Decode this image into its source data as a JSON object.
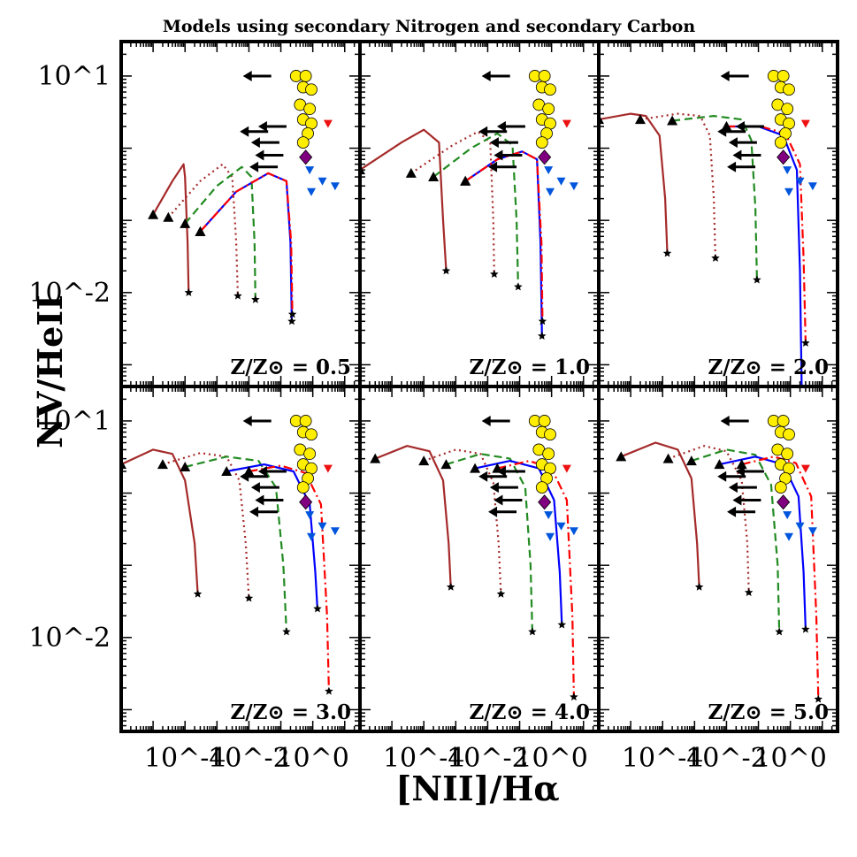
{
  "title": "Models using secondary Nitrogen and secondary Carbon",
  "chart_data": {
    "type": "line",
    "title": "Models using secondary Nitrogen and secondary Carbon",
    "xlabel": "[NII]/Hα",
    "ylabel": "NV/HeII",
    "xscale": "log",
    "yscale": "log",
    "xlim": [
      1e-06,
      30
    ],
    "ylim": [
      0.0005,
      30
    ],
    "x_ticks": [
      "10^-4",
      "10^-2",
      "10^0"
    ],
    "y_ticks": [
      "10^1",
      "10^-2"
    ],
    "grid": false,
    "layout": "2x3 panels, shared axes",
    "series_styles": [
      {
        "linestyle": "solid",
        "color": "#a52a2a"
      },
      {
        "linestyle": "dotted",
        "color": "#a52a2a"
      },
      {
        "linestyle": "dashed",
        "color": "#228b22"
      },
      {
        "linestyle": "solid",
        "color": "#0000ff"
      },
      {
        "linestyle": "dashdot",
        "color": "#ff0000"
      }
    ],
    "colors": {
      "track1": "#a52a2a",
      "track2": "#a52a2a",
      "track3": "#228b22",
      "track4": "#0000ff",
      "track5": "#ff0000",
      "obs_circle": "#ffee00",
      "obs_diamond": "#800080",
      "obs_blue": "#0055dd",
      "obs_red": "#ee1111"
    },
    "start_marker": "black triangle",
    "end_marker": "black star",
    "observations": {
      "yellow_circles": [
        [
          0.3,
          10
        ],
        [
          0.6,
          10
        ],
        [
          0.5,
          7
        ],
        [
          0.9,
          6.5
        ],
        [
          0.4,
          4
        ],
        [
          0.8,
          3.5
        ],
        [
          0.5,
          2.5
        ],
        [
          0.9,
          2.2
        ],
        [
          0.7,
          1.6
        ],
        [
          0.5,
          1.2
        ]
      ],
      "upper_limit_arrows": [
        [
          0.05,
          10
        ],
        [
          0.15,
          2
        ],
        [
          0.04,
          1.7
        ],
        [
          0.09,
          1.2
        ],
        [
          0.12,
          0.8
        ],
        [
          0.08,
          0.55
        ]
      ],
      "purple_diamond": [
        [
          0.6,
          0.75
        ]
      ],
      "red_down_triangles": [
        [
          3,
          2.2
        ]
      ],
      "blue_down_triangles": [
        [
          0.8,
          0.5
        ],
        [
          2,
          0.35
        ],
        [
          5,
          0.3
        ],
        [
          0.9,
          0.25
        ]
      ]
    },
    "panels": [
      {
        "label": "Z/Z⊙ = 0.5",
        "series": [
          {
            "x": [
              1e-05,
              4e-05,
              9e-05,
              0.0001,
              0.00012,
              0.00013
            ],
            "y": [
              0.12,
              0.35,
              0.6,
              0.4,
              0.05,
              0.01
            ]
          },
          {
            "x": [
              3e-05,
              0.0003,
              0.0015,
              0.003,
              0.004,
              0.0045
            ],
            "y": [
              0.11,
              0.35,
              0.6,
              0.4,
              0.05,
              0.009
            ]
          },
          {
            "x": [
              0.0001,
              0.001,
              0.006,
              0.012,
              0.015,
              0.016
            ],
            "y": [
              0.09,
              0.3,
              0.55,
              0.4,
              0.05,
              0.008
            ]
          },
          {
            "x": [
              0.0003,
              0.004,
              0.04,
              0.15,
              0.2,
              0.22
            ],
            "y": [
              0.07,
              0.25,
              0.45,
              0.35,
              0.05,
              0.004
            ]
          },
          {
            "x": [
              0.0003,
              0.004,
              0.04,
              0.15,
              0.21,
              0.23
            ],
            "y": [
              0.07,
              0.25,
              0.45,
              0.35,
              0.05,
              0.005
            ]
          }
        ]
      },
      {
        "label": "Z/Z⊙ = 1.0",
        "series": [
          {
            "x": [
              1e-06,
              2e-05,
              0.0001,
              0.0003,
              0.0004,
              0.0005
            ],
            "y": [
              0.5,
              1.2,
              1.8,
              1.2,
              0.1,
              0.02
            ]
          },
          {
            "x": [
              4e-05,
              0.0008,
              0.005,
              0.012,
              0.015,
              0.016
            ],
            "y": [
              0.45,
              1.1,
              1.7,
              1.2,
              0.1,
              0.018
            ]
          },
          {
            "x": [
              0.0002,
              0.003,
              0.02,
              0.06,
              0.08,
              0.09
            ],
            "y": [
              0.4,
              1.0,
              1.6,
              1.1,
              0.1,
              0.012
            ]
          },
          {
            "x": [
              0.002,
              0.02,
              0.12,
              0.35,
              0.45,
              0.5
            ],
            "y": [
              0.35,
              0.7,
              0.9,
              0.7,
              0.05,
              0.0025
            ]
          },
          {
            "x": [
              0.002,
              0.02,
              0.12,
              0.35,
              0.48,
              0.52
            ],
            "y": [
              0.35,
              0.7,
              0.9,
              0.7,
              0.05,
              0.004
            ]
          }
        ]
      },
      {
        "label": "Z/Z⊙ = 2.0",
        "series": [
          {
            "x": [
              1e-06,
              1e-05,
              3e-05,
              8e-05,
              0.00012,
              0.00014
            ],
            "y": [
              2.5,
              3.0,
              2.8,
              1.5,
              0.2,
              0.035
            ]
          },
          {
            "x": [
              2e-05,
              0.0003,
              0.0015,
              0.003,
              0.004,
              0.0045
            ],
            "y": [
              2.5,
              3.0,
              2.8,
              1.5,
              0.2,
              0.03
            ]
          },
          {
            "x": [
              0.0002,
              0.004,
              0.03,
              0.06,
              0.08,
              0.09
            ],
            "y": [
              2.4,
              2.8,
              2.5,
              1.3,
              0.15,
              0.015
            ]
          },
          {
            "x": [
              0.01,
              0.1,
              0.6,
              1.6,
              2.0,
              2.3
            ],
            "y": [
              2.0,
              2.0,
              1.5,
              0.5,
              0.02,
              0.0003
            ]
          },
          {
            "x": [
              0.01,
              0.12,
              0.7,
              2.0,
              2.6,
              3.0
            ],
            "y": [
              2.0,
              2.0,
              1.6,
              0.6,
              0.03,
              0.002
            ]
          }
        ]
      },
      {
        "label": "Z/Z⊙ = 3.0",
        "series": [
          {
            "x": [
              1e-06,
              1e-05,
              4e-05,
              0.0001,
              0.0002,
              0.00025
            ],
            "y": [
              2.5,
              4.0,
              3.5,
              1.5,
              0.2,
              0.04
            ]
          },
          {
            "x": [
              2e-05,
              0.0003,
              0.002,
              0.005,
              0.008,
              0.01
            ],
            "y": [
              2.5,
              3.6,
              3.2,
              1.5,
              0.2,
              0.035
            ]
          },
          {
            "x": [
              0.0001,
              0.002,
              0.02,
              0.07,
              0.12,
              0.15
            ],
            "y": [
              2.3,
              3.2,
              2.8,
              1.2,
              0.1,
              0.012
            ]
          },
          {
            "x": [
              0.002,
              0.03,
              0.25,
              0.8,
              1.2,
              1.4
            ],
            "y": [
              2.0,
              2.5,
              2.0,
              0.7,
              0.08,
              0.025
            ]
          },
          {
            "x": [
              0.01,
              0.1,
              0.6,
              1.8,
              2.8,
              3.2
            ],
            "y": [
              2.0,
              2.4,
              1.9,
              0.7,
              0.02,
              0.0018
            ]
          }
        ]
      },
      {
        "label": "Z/Z⊙ = 4.0",
        "series": [
          {
            "x": [
              3e-06,
              3e-05,
              0.00015,
              0.0004,
              0.0006,
              0.0007
            ],
            "y": [
              3.0,
              4.5,
              3.8,
              1.5,
              0.2,
              0.05
            ]
          },
          {
            "x": [
              0.0001,
              0.001,
              0.006,
              0.015,
              0.022,
              0.026
            ],
            "y": [
              2.8,
              4.0,
              3.5,
              1.4,
              0.2,
              0.04
            ]
          },
          {
            "x": [
              0.0005,
              0.006,
              0.05,
              0.15,
              0.22,
              0.25
            ],
            "y": [
              2.5,
              3.5,
              3.0,
              1.2,
              0.1,
              0.012
            ]
          },
          {
            "x": [
              0.004,
              0.05,
              0.4,
              1.2,
              1.8,
              2.1
            ],
            "y": [
              2.2,
              2.8,
              2.2,
              0.8,
              0.08,
              0.015
            ]
          },
          {
            "x": [
              0.02,
              0.2,
              1.0,
              3.0,
              4.5,
              5.0
            ],
            "y": [
              2.2,
              2.8,
              2.2,
              0.8,
              0.02,
              0.0015
            ]
          }
        ]
      },
      {
        "label": "Z/Z⊙ = 5.0",
        "series": [
          {
            "x": [
              5e-06,
              6e-05,
              0.0003,
              0.0008,
              0.0012,
              0.0014
            ],
            "y": [
              3.2,
              5.0,
              4.0,
              1.6,
              0.2,
              0.05
            ]
          },
          {
            "x": [
              0.00015,
              0.002,
              0.01,
              0.03,
              0.045,
              0.05
            ],
            "y": [
              3.0,
              4.5,
              3.8,
              1.5,
              0.2,
              0.042
            ]
          },
          {
            "x": [
              0.0008,
              0.01,
              0.08,
              0.25,
              0.4,
              0.45
            ],
            "y": [
              2.8,
              4.0,
              3.4,
              1.3,
              0.1,
              0.012
            ]
          },
          {
            "x": [
              0.006,
              0.08,
              0.6,
              1.8,
              2.6,
              3.0
            ],
            "y": [
              2.5,
              3.2,
              2.5,
              0.9,
              0.08,
              0.013
            ]
          },
          {
            "x": [
              0.03,
              0.3,
              1.5,
              4.5,
              6.5,
              7.5
            ],
            "y": [
              2.5,
              3.2,
              2.6,
              0.9,
              0.02,
              0.0014
            ]
          }
        ]
      }
    ]
  }
}
